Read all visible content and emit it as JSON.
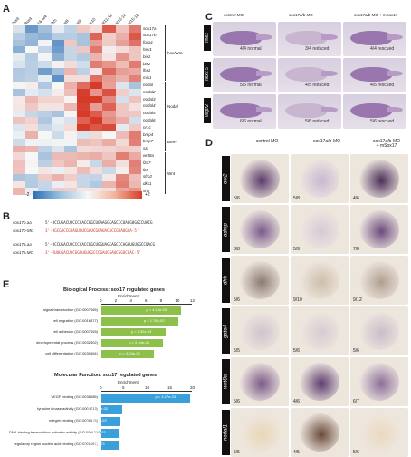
{
  "panels": {
    "a": "A",
    "b": "B",
    "c": "C",
    "d": "D",
    "e": "E"
  },
  "heatmap": {
    "columns": [
      "2cell",
      "8cell",
      "16 cell",
      "32c",
      "st8",
      "st9",
      "st10",
      "st11-12",
      "st13-14",
      "st15-18"
    ],
    "row_groups": [
      {
        "label": "hox/Wnt",
        "genes": [
          "sox17a",
          "sox17b",
          "foxa1",
          "hey1",
          "bix1",
          "bix2",
          "lhx1",
          "mix1"
        ]
      },
      {
        "label": "Nodal",
        "genes": [
          "nodal",
          "nodal2",
          "nodal3",
          "nodal4",
          "nodal5",
          "nodal6",
          "nr1c"
        ]
      },
      {
        "label": "BMP",
        "genes": [
          "bmp4",
          "bmp7",
          "szl"
        ]
      },
      {
        "label": "Wnt",
        "genes": [
          "wnt8a",
          "fzd7",
          "fz8",
          "sfrp2",
          "dkk1",
          "shh"
        ]
      }
    ],
    "scale_min": "-2",
    "scale_max": "+2",
    "colors": {
      "low": "#2b6fb5",
      "mid": "#f7f7f7",
      "high": "#d63b2a"
    }
  },
  "sequences": {
    "rows": [
      {
        "name": "sox17b.aa",
        "seq": "5'-UCCUGACUCCCCCACCUGCUGAAGGCAGCCCUAUGUGGCCUACG",
        "target": false
      },
      {
        "name": "sox17b-MO",
        "seq": "3'-UGCGACCGGAGUGUCGAUCGGAUACACCGUAUGCA-5'",
        "target": true
      },
      {
        "name": "sox17a.aa",
        "seq": "5'-UCCUGACUCCCCCACCUGCUGGUAGCAGCCCAGAUGUGGCCUACG",
        "target": false
      },
      {
        "name": "sox17a.MO",
        "seq": "3'-UUUUGACUCCGGGUGUGGCCCGAUCGAUCGGUCUAC-5'",
        "target": true
      }
    ]
  },
  "go_bp": {
    "title": "Biological Process: sox17 regulated genes",
    "axis_label": "Enrichment",
    "ticks": [
      "0",
      "2",
      "4",
      "6",
      "8",
      "10",
      "12"
    ],
    "bars": [
      {
        "label": "signal transduction (GO:0007165)",
        "value": 10.5,
        "p": "p = 4.10e-03"
      },
      {
        "label": "cell migration (GO:0016477)",
        "value": 10.2,
        "p": "p = 1.78e-02"
      },
      {
        "label": "cell adhesion (GO:0007155)",
        "value": 8.5,
        "p": "p = 6.32e-03"
      },
      {
        "label": "developmental process (GO:0032502)",
        "value": 8.2,
        "p": "p = 2.44e-03"
      },
      {
        "label": "cell differentiation (GO:0030154)",
        "value": 7.0,
        "p": "p = 3.24e-02"
      }
    ],
    "color": "#8cc04a"
  },
  "go_mf": {
    "title": "Molecular Function: sox17 regulated genes",
    "axis_label": "Enrichment",
    "ticks": [
      "0",
      "5",
      "10",
      "15",
      "20"
    ],
    "bars": [
      {
        "label": "VEGF binding (GO:0038085)",
        "value": 19.5,
        "p": "p = 3.27e-03"
      },
      {
        "label": "tyrosine kinase activity (GO:0004713)",
        "value": 4.5,
        "p": "p = 4.56e-02"
      },
      {
        "label": "integrin binding (GO:0005178)",
        "value": 4.2,
        "p": "p = 3.50e-03"
      },
      {
        "label": "DNA-binding transcription activator activity (GO:0001228)",
        "value": 4.0,
        "p": "p = 3.42e-03"
      },
      {
        "label": "regulatory region nucleic acid binding (GO:0001067)",
        "value": 3.8,
        "p": "p = 2.40e-03"
      }
    ],
    "color": "#3aa0dc"
  },
  "panel_c": {
    "columns": [
      "control MO",
      "sox17a/b MO",
      "sox17a/b MO + mSox17"
    ],
    "rows": [
      {
        "gene": "hhex",
        "counts": [
          "4/4 normal",
          "3/4 reduced",
          "4/4 rescued"
        ]
      },
      {
        "gene": "nkx2.5",
        "counts": [
          "5/5 normal",
          "4/5 reduced",
          "4/5 rescued"
        ]
      },
      {
        "gene": "vegfr2",
        "counts": [
          "6/6 normal",
          "5/6 reduced",
          "5/6 rescued"
        ]
      }
    ]
  },
  "panel_d": {
    "columns": [
      "control MO",
      "sox17a/b-MO",
      "sox17a/b-MO\n+ mSox17"
    ],
    "rows": [
      {
        "gene": "otx2",
        "counts": [
          "5/6",
          "5/8",
          "4/6"
        ]
      },
      {
        "gene": "admp",
        "counts": [
          "8/8",
          "5/9",
          "7/8"
        ]
      },
      {
        "gene": "dhh",
        "counts": [
          "5/6",
          "9/10",
          "9/12"
        ]
      },
      {
        "gene": "gata4",
        "counts": [
          "5/5",
          "5/6",
          "5/6"
        ]
      },
      {
        "gene": "wnt8a",
        "counts": [
          "5/6",
          "4/6",
          "6/7"
        ]
      },
      {
        "gene": "nodal1",
        "counts": [
          "5/5",
          "4/5",
          "5/6"
        ]
      }
    ]
  }
}
